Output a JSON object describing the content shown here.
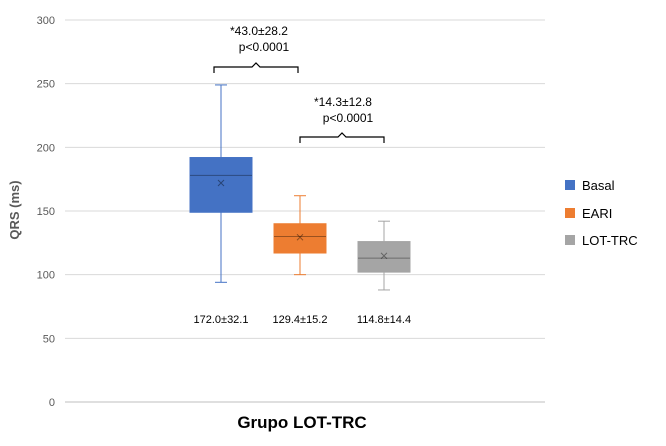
{
  "chart_data": {
    "type": "box",
    "xlabel": "Grupo LOT-TRC",
    "ylabel": "QRS (ms)",
    "ylim": [
      0,
      300
    ],
    "yticks": [
      0,
      50,
      100,
      150,
      200,
      250,
      300
    ],
    "grid": true,
    "legend_position": "right",
    "series": [
      {
        "name": "Basal",
        "color": "#4472C4",
        "min": 94,
        "q1": 149,
        "median": 178,
        "q3": 192,
        "max": 249,
        "mean": 172.0,
        "label": "172.0±32.1"
      },
      {
        "name": "EARI",
        "color": "#ED7D31",
        "min": 100,
        "q1": 117,
        "median": 130,
        "q3": 140,
        "max": 162,
        "mean": 129.4,
        "label": "129.4±15.2"
      },
      {
        "name": "LOT-TRC",
        "color": "#A5A5A5",
        "min": 88,
        "q1": 102,
        "median": 113,
        "q3": 126,
        "max": 142,
        "mean": 114.8,
        "label": "114.8±14.4"
      }
    ],
    "comparisons": [
      {
        "from": "Basal",
        "to": "EARI",
        "line1": "*43.0±28.2",
        "line2": "p<0.0001"
      },
      {
        "from": "EARI",
        "to": "LOT-TRC",
        "line1": "*14.3±12.8",
        "line2": "p<0.0001"
      }
    ]
  }
}
